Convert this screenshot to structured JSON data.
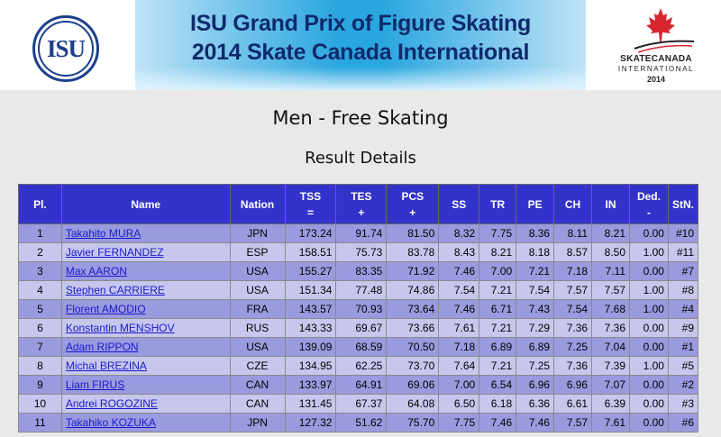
{
  "header": {
    "isu_logo_text": "ISU",
    "banner_line1": "ISU Grand Prix of Figure Skating",
    "banner_line2": "2014 Skate Canada International",
    "event_logo": {
      "line1": "SKATECANADA",
      "line2": "INTERNATIONAL",
      "line3": "2014"
    }
  },
  "event_title": "Men - Free Skating",
  "section_title": "Result Details",
  "table": {
    "headers": {
      "pl": "Pl.",
      "name": "Name",
      "nation": "Nation",
      "tss": "TSS",
      "tss_sub": "=",
      "tes": "TES",
      "tes_sub": "+",
      "pcs": "PCS",
      "pcs_sub": "+",
      "ss": "SS",
      "tr": "TR",
      "pe": "PE",
      "ch": "CH",
      "in": "IN",
      "ded": "Ded.",
      "ded_sub": "-",
      "stn": "StN."
    },
    "rows": [
      {
        "pl": "1",
        "name": "Takahito MURA",
        "nation": "JPN",
        "tss": "173.24",
        "tes": "91.74",
        "pcs": "81.50",
        "ss": "8.32",
        "tr": "7.75",
        "pe": "8.36",
        "ch": "8.11",
        "in": "8.21",
        "ded": "0.00",
        "stn": "#10"
      },
      {
        "pl": "2",
        "name": "Javier FERNANDEZ",
        "nation": "ESP",
        "tss": "158.51",
        "tes": "75.73",
        "pcs": "83.78",
        "ss": "8.43",
        "tr": "8.21",
        "pe": "8.18",
        "ch": "8.57",
        "in": "8.50",
        "ded": "1.00",
        "stn": "#11"
      },
      {
        "pl": "3",
        "name": "Max AARON",
        "nation": "USA",
        "tss": "155.27",
        "tes": "83.35",
        "pcs": "71.92",
        "ss": "7.46",
        "tr": "7.00",
        "pe": "7.21",
        "ch": "7.18",
        "in": "7.11",
        "ded": "0.00",
        "stn": "#7"
      },
      {
        "pl": "4",
        "name": "Stephen CARRIERE",
        "nation": "USA",
        "tss": "151.34",
        "tes": "77.48",
        "pcs": "74.86",
        "ss": "7.54",
        "tr": "7.21",
        "pe": "7.54",
        "ch": "7.57",
        "in": "7.57",
        "ded": "1.00",
        "stn": "#8"
      },
      {
        "pl": "5",
        "name": "Florent AMODIO",
        "nation": "FRA",
        "tss": "143.57",
        "tes": "70.93",
        "pcs": "73.64",
        "ss": "7.46",
        "tr": "6.71",
        "pe": "7.43",
        "ch": "7.54",
        "in": "7.68",
        "ded": "1.00",
        "stn": "#4"
      },
      {
        "pl": "6",
        "name": "Konstantin MENSHOV",
        "nation": "RUS",
        "tss": "143.33",
        "tes": "69.67",
        "pcs": "73.66",
        "ss": "7.61",
        "tr": "7.21",
        "pe": "7.29",
        "ch": "7.36",
        "in": "7.36",
        "ded": "0.00",
        "stn": "#9"
      },
      {
        "pl": "7",
        "name": "Adam RIPPON",
        "nation": "USA",
        "tss": "139.09",
        "tes": "68.59",
        "pcs": "70.50",
        "ss": "7.18",
        "tr": "6.89",
        "pe": "6.89",
        "ch": "7.25",
        "in": "7.04",
        "ded": "0.00",
        "stn": "#1"
      },
      {
        "pl": "8",
        "name": "Michal BREZINA",
        "nation": "CZE",
        "tss": "134.95",
        "tes": "62.25",
        "pcs": "73.70",
        "ss": "7.64",
        "tr": "7.21",
        "pe": "7.25",
        "ch": "7.36",
        "in": "7.39",
        "ded": "1.00",
        "stn": "#5"
      },
      {
        "pl": "9",
        "name": "Liam FIRUS",
        "nation": "CAN",
        "tss": "133.97",
        "tes": "64.91",
        "pcs": "69.06",
        "ss": "7.00",
        "tr": "6.54",
        "pe": "6.96",
        "ch": "6.96",
        "in": "7.07",
        "ded": "0.00",
        "stn": "#2"
      },
      {
        "pl": "10",
        "name": "Andrei ROGOZINE",
        "nation": "CAN",
        "tss": "131.45",
        "tes": "67.37",
        "pcs": "64.08",
        "ss": "6.50",
        "tr": "6.18",
        "pe": "6.36",
        "ch": "6.61",
        "in": "6.39",
        "ded": "0.00",
        "stn": "#3"
      },
      {
        "pl": "11",
        "name": "Takahiko KOZUKA",
        "nation": "JPN",
        "tss": "127.32",
        "tes": "51.62",
        "pcs": "75.70",
        "ss": "7.75",
        "tr": "7.46",
        "pe": "7.46",
        "ch": "7.57",
        "in": "7.61",
        "ded": "0.00",
        "stn": "#6"
      }
    ]
  },
  "colors": {
    "header_bg": "#3333cc",
    "row_odd": "#9a9adf",
    "row_even": "#c7c7ee",
    "link": "#1a1acc",
    "banner_blue": "#2aa6df",
    "leaf_red": "#d7262e"
  }
}
